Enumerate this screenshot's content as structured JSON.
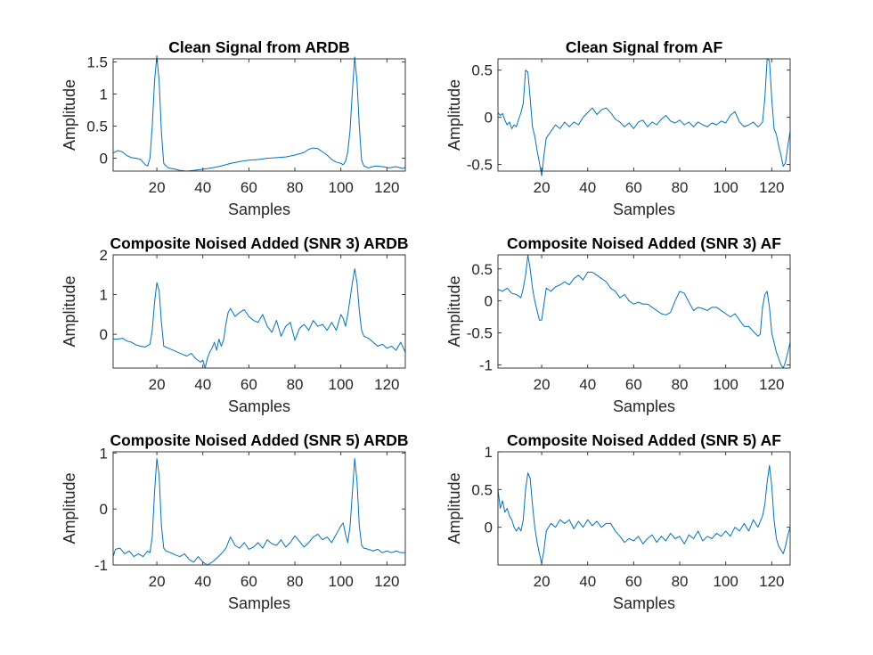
{
  "colors": {
    "line": "#0072BD",
    "axis": "#262626",
    "background": "#ffffff"
  },
  "chart_data": [
    {
      "type": "line",
      "title": "Clean Signal from ARDB",
      "xlabel": "Samples",
      "ylabel": "Amplitude",
      "xlim": [
        1,
        128
      ],
      "ylim": [
        -0.2,
        1.55
      ],
      "xticks": [
        20,
        40,
        60,
        80,
        100,
        120
      ],
      "yticks": [
        0,
        0.5,
        1,
        1.5
      ],
      "ytick_labels": [
        "0",
        "0.5",
        "1",
        "1.5"
      ],
      "series": [
        {
          "x": [
            1,
            3,
            5,
            7,
            9,
            11,
            13,
            15,
            16,
            17,
            18,
            19,
            20,
            21,
            22,
            23,
            24,
            25,
            28,
            30,
            33,
            36,
            40,
            44,
            48,
            52,
            56,
            60,
            64,
            68,
            72,
            76,
            80,
            84,
            86,
            88,
            90,
            92,
            94,
            96,
            98,
            100,
            101,
            102,
            103,
            104,
            105,
            106,
            107,
            108,
            109,
            110,
            112,
            115,
            118,
            121,
            124,
            127,
            128
          ],
          "y": [
            0.08,
            0.12,
            0.1,
            0.04,
            0.01,
            0.0,
            -0.02,
            -0.1,
            -0.12,
            0.0,
            0.5,
            1.2,
            1.6,
            1.2,
            0.4,
            -0.08,
            -0.12,
            -0.15,
            -0.17,
            -0.19,
            -0.2,
            -0.19,
            -0.17,
            -0.15,
            -0.12,
            -0.08,
            -0.05,
            -0.03,
            -0.02,
            0.0,
            0.01,
            0.02,
            0.05,
            0.09,
            0.14,
            0.16,
            0.15,
            0.1,
            0.05,
            -0.02,
            -0.06,
            -0.08,
            -0.1,
            -0.05,
            0.1,
            0.45,
            1.05,
            1.58,
            1.2,
            0.5,
            -0.03,
            -0.12,
            -0.15,
            -0.12,
            -0.13,
            -0.15,
            -0.13,
            -0.16,
            -0.14
          ]
        }
      ]
    },
    {
      "type": "line",
      "title": "Clean Signal from AF",
      "xlabel": "Samples",
      "ylabel": "Amplitude",
      "xlim": [
        1,
        128
      ],
      "ylim": [
        -0.57,
        0.62
      ],
      "xticks": [
        20,
        40,
        60,
        80,
        100,
        120
      ],
      "yticks": [
        -0.5,
        0,
        0.5
      ],
      "ytick_labels": [
        "-0.5",
        "0",
        "0.5"
      ],
      "series": [
        {
          "x": [
            1,
            2,
            3,
            4,
            5,
            6,
            7,
            8,
            9,
            10,
            11,
            12,
            13,
            14,
            15,
            16,
            17,
            18,
            19,
            20,
            21,
            22,
            24,
            26,
            28,
            30,
            32,
            34,
            36,
            38,
            40,
            42,
            44,
            46,
            48,
            50,
            52,
            54,
            56,
            58,
            60,
            62,
            64,
            66,
            68,
            70,
            72,
            74,
            76,
            78,
            80,
            82,
            84,
            86,
            88,
            90,
            92,
            94,
            96,
            98,
            100,
            102,
            104,
            106,
            108,
            110,
            112,
            114,
            115,
            116,
            117,
            118,
            119,
            120,
            121,
            122,
            123,
            124,
            125,
            126,
            127,
            128
          ],
          "y": [
            0.05,
            0.02,
            0.04,
            -0.03,
            -0.08,
            -0.05,
            -0.12,
            -0.08,
            -0.1,
            -0.02,
            0.05,
            0.15,
            0.5,
            0.48,
            0.2,
            -0.1,
            -0.2,
            -0.35,
            -0.48,
            -0.62,
            -0.4,
            -0.22,
            -0.15,
            -0.08,
            -0.12,
            -0.05,
            -0.1,
            -0.05,
            -0.08,
            0.0,
            0.05,
            0.1,
            0.03,
            0.08,
            0.1,
            0.05,
            -0.02,
            -0.05,
            -0.1,
            -0.06,
            -0.12,
            -0.05,
            -0.03,
            -0.1,
            -0.05,
            -0.08,
            -0.02,
            0.02,
            -0.04,
            -0.06,
            -0.03,
            -0.08,
            -0.05,
            -0.1,
            -0.05,
            -0.08,
            -0.1,
            -0.06,
            -0.08,
            -0.04,
            -0.06,
            0.02,
            0.06,
            -0.05,
            -0.1,
            -0.08,
            -0.05,
            -0.1,
            -0.08,
            -0.05,
            0.2,
            0.62,
            0.6,
            0.2,
            -0.12,
            -0.18,
            -0.3,
            -0.4,
            -0.52,
            -0.48,
            -0.3,
            -0.15
          ]
        }
      ]
    },
    {
      "type": "line",
      "title": "Composite Noised Added (SNR 3) ARDB",
      "xlabel": "Samples",
      "ylabel": "Amplitude",
      "xlim": [
        1,
        128
      ],
      "ylim": [
        -0.85,
        2.0
      ],
      "xticks": [
        20,
        40,
        60,
        80,
        100,
        120
      ],
      "yticks": [
        0,
        1,
        2
      ],
      "ytick_labels": [
        "0",
        "1",
        "2"
      ],
      "series": [
        {
          "x": [
            1,
            3,
            5,
            7,
            9,
            11,
            13,
            15,
            17,
            18,
            19,
            20,
            21,
            22,
            23,
            25,
            27,
            29,
            31,
            33,
            35,
            37,
            39,
            40,
            41,
            42,
            43,
            44,
            45,
            46,
            47,
            48,
            49,
            50,
            51,
            52,
            53,
            54,
            56,
            58,
            60,
            62,
            64,
            66,
            68,
            70,
            72,
            74,
            76,
            78,
            80,
            82,
            84,
            86,
            88,
            90,
            92,
            94,
            96,
            98,
            100,
            101,
            102,
            103,
            104,
            105,
            106,
            107,
            108,
            109,
            110,
            112,
            114,
            116,
            118,
            120,
            122,
            124,
            126,
            128
          ],
          "y": [
            -0.12,
            -0.12,
            -0.1,
            -0.17,
            -0.2,
            -0.27,
            -0.3,
            -0.32,
            -0.25,
            0.1,
            0.8,
            1.3,
            1.1,
            0.3,
            -0.3,
            -0.35,
            -0.4,
            -0.45,
            -0.5,
            -0.55,
            -0.48,
            -0.62,
            -0.7,
            -0.65,
            -0.85,
            -0.6,
            -0.45,
            -0.35,
            -0.2,
            -0.4,
            -0.12,
            -0.3,
            -0.15,
            0.25,
            0.55,
            0.65,
            0.55,
            0.45,
            0.55,
            0.62,
            0.45,
            0.35,
            0.3,
            0.5,
            0.2,
            0.05,
            0.35,
            -0.05,
            0.2,
            0.3,
            -0.15,
            0.15,
            0.25,
            0.1,
            0.35,
            0.2,
            0.25,
            0.1,
            0.3,
            0.1,
            0.5,
            0.4,
            0.2,
            0.5,
            0.9,
            1.3,
            1.65,
            1.3,
            0.6,
            0.1,
            -0.05,
            -0.1,
            -0.2,
            -0.3,
            -0.25,
            -0.35,
            -0.3,
            -0.4,
            -0.2,
            -0.45
          ]
        }
      ]
    },
    {
      "type": "line",
      "title": "Composite Noised Added (SNR 3) AF",
      "xlabel": "Samples",
      "ylabel": "Amplitude",
      "xlim": [
        1,
        128
      ],
      "ylim": [
        -1.05,
        0.72
      ],
      "xticks": [
        20,
        40,
        60,
        80,
        100,
        120
      ],
      "yticks": [
        -1,
        -0.5,
        0,
        0.5
      ],
      "ytick_labels": [
        "-1",
        "-0.5",
        "0",
        "0.5"
      ],
      "series": [
        {
          "x": [
            1,
            3,
            5,
            7,
            9,
            11,
            12,
            13,
            14,
            15,
            16,
            17,
            18,
            19,
            20,
            21,
            22,
            24,
            26,
            28,
            30,
            32,
            34,
            36,
            38,
            40,
            42,
            44,
            46,
            48,
            50,
            52,
            54,
            56,
            58,
            60,
            62,
            64,
            66,
            68,
            70,
            72,
            74,
            76,
            78,
            80,
            82,
            84,
            86,
            88,
            90,
            92,
            94,
            96,
            98,
            100,
            102,
            104,
            106,
            108,
            110,
            112,
            114,
            115,
            116,
            117,
            118,
            119,
            120,
            121,
            122,
            123,
            124,
            125,
            126,
            127,
            128
          ],
          "y": [
            0.18,
            0.15,
            0.2,
            0.12,
            0.1,
            0.05,
            0.2,
            0.4,
            0.72,
            0.5,
            0.2,
            0.0,
            -0.15,
            -0.3,
            -0.3,
            -0.05,
            0.2,
            0.15,
            0.22,
            0.25,
            0.3,
            0.25,
            0.35,
            0.4,
            0.33,
            0.45,
            0.45,
            0.4,
            0.35,
            0.3,
            0.2,
            0.15,
            0.05,
            0.1,
            0.0,
            -0.05,
            -0.02,
            -0.05,
            -0.05,
            -0.1,
            -0.15,
            -0.2,
            -0.22,
            -0.18,
            0.0,
            0.15,
            0.12,
            -0.02,
            -0.15,
            -0.1,
            -0.12,
            -0.15,
            -0.1,
            -0.1,
            -0.15,
            -0.2,
            -0.25,
            -0.2,
            -0.3,
            -0.4,
            -0.4,
            -0.48,
            -0.55,
            -0.52,
            -0.1,
            0.1,
            0.15,
            -0.1,
            -0.5,
            -0.65,
            -0.8,
            -0.9,
            -1.0,
            -1.05,
            -0.95,
            -0.8,
            -0.65
          ]
        }
      ]
    },
    {
      "type": "line",
      "title": "Composite Noised Added (SNR 5) ARDB",
      "xlabel": "Samples",
      "ylabel": "Amplitude",
      "xlim": [
        1,
        128
      ],
      "ylim": [
        -1.0,
        1.02
      ],
      "xticks": [
        20,
        40,
        60,
        80,
        100,
        120
      ],
      "yticks": [
        -1,
        0,
        1
      ],
      "ytick_labels": [
        "-1",
        "0",
        "1"
      ],
      "series": [
        {
          "x": [
            1,
            2,
            4,
            6,
            8,
            10,
            12,
            14,
            16,
            17,
            18,
            19,
            20,
            21,
            22,
            23,
            24,
            26,
            28,
            30,
            32,
            34,
            36,
            38,
            40,
            42,
            44,
            46,
            48,
            50,
            52,
            54,
            56,
            58,
            60,
            62,
            64,
            66,
            68,
            70,
            72,
            74,
            76,
            78,
            80,
            82,
            84,
            86,
            88,
            90,
            92,
            94,
            96,
            98,
            100,
            101,
            102,
            103,
            104,
            105,
            106,
            107,
            108,
            109,
            110,
            112,
            114,
            116,
            118,
            120,
            122,
            124,
            126,
            128
          ],
          "y": [
            -0.85,
            -0.72,
            -0.7,
            -0.8,
            -0.75,
            -0.85,
            -0.8,
            -0.85,
            -0.75,
            -0.78,
            -0.5,
            0.3,
            0.9,
            0.6,
            -0.3,
            -0.7,
            -0.75,
            -0.78,
            -0.82,
            -0.85,
            -0.8,
            -0.9,
            -0.95,
            -0.85,
            -0.95,
            -1.0,
            -0.95,
            -0.88,
            -0.8,
            -0.7,
            -0.5,
            -0.65,
            -0.7,
            -0.6,
            -0.72,
            -0.68,
            -0.6,
            -0.7,
            -0.55,
            -0.62,
            -0.65,
            -0.55,
            -0.68,
            -0.6,
            -0.48,
            -0.58,
            -0.68,
            -0.6,
            -0.5,
            -0.45,
            -0.55,
            -0.5,
            -0.6,
            -0.45,
            -0.3,
            -0.25,
            -0.45,
            -0.6,
            -0.3,
            0.3,
            0.9,
            0.5,
            -0.3,
            -0.65,
            -0.7,
            -0.72,
            -0.75,
            -0.72,
            -0.78,
            -0.75,
            -0.78,
            -0.75,
            -0.78,
            -0.78
          ]
        }
      ]
    },
    {
      "type": "line",
      "title": "Composite Noised Added (SNR 5) AF",
      "xlabel": "Samples",
      "ylabel": "Amplitude",
      "xlim": [
        1,
        128
      ],
      "ylim": [
        -0.5,
        1.0
      ],
      "xticks": [
        20,
        40,
        60,
        80,
        100,
        120
      ],
      "yticks": [
        0,
        0.5,
        1
      ],
      "ytick_labels": [
        "0",
        "0.5",
        "1"
      ],
      "series": [
        {
          "x": [
            1,
            2,
            3,
            4,
            5,
            6,
            7,
            8,
            9,
            10,
            11,
            12,
            13,
            14,
            15,
            16,
            17,
            18,
            19,
            20,
            21,
            22,
            24,
            26,
            28,
            30,
            32,
            34,
            36,
            38,
            40,
            42,
            44,
            46,
            48,
            50,
            52,
            54,
            56,
            58,
            60,
            62,
            64,
            66,
            68,
            70,
            72,
            74,
            76,
            78,
            80,
            82,
            84,
            86,
            88,
            90,
            92,
            94,
            96,
            98,
            100,
            102,
            104,
            106,
            108,
            110,
            112,
            114,
            116,
            117,
            118,
            119,
            120,
            121,
            122,
            123,
            124,
            125,
            126,
            127,
            128
          ],
          "y": [
            0.5,
            0.25,
            0.35,
            0.2,
            0.25,
            0.15,
            0.1,
            0.0,
            -0.05,
            0.0,
            -0.05,
            0.1,
            0.5,
            0.72,
            0.65,
            0.3,
            0.0,
            -0.2,
            -0.35,
            -0.48,
            -0.3,
            -0.05,
            0.05,
            0.0,
            0.1,
            0.05,
            0.1,
            -0.02,
            0.08,
            0.0,
            0.1,
            0.02,
            0.08,
            0.0,
            0.05,
            0.05,
            -0.05,
            -0.12,
            -0.2,
            -0.15,
            -0.18,
            -0.12,
            -0.22,
            -0.15,
            -0.1,
            -0.2,
            -0.12,
            -0.18,
            -0.08,
            -0.15,
            -0.12,
            -0.22,
            -0.1,
            -0.15,
            -0.05,
            -0.18,
            -0.12,
            -0.15,
            -0.08,
            -0.12,
            -0.05,
            -0.12,
            0.0,
            -0.05,
            0.05,
            -0.05,
            0.1,
            0.0,
            0.15,
            0.3,
            0.6,
            0.82,
            0.55,
            0.1,
            -0.15,
            -0.25,
            -0.3,
            -0.35,
            -0.25,
            -0.1,
            0.0
          ]
        }
      ]
    }
  ]
}
